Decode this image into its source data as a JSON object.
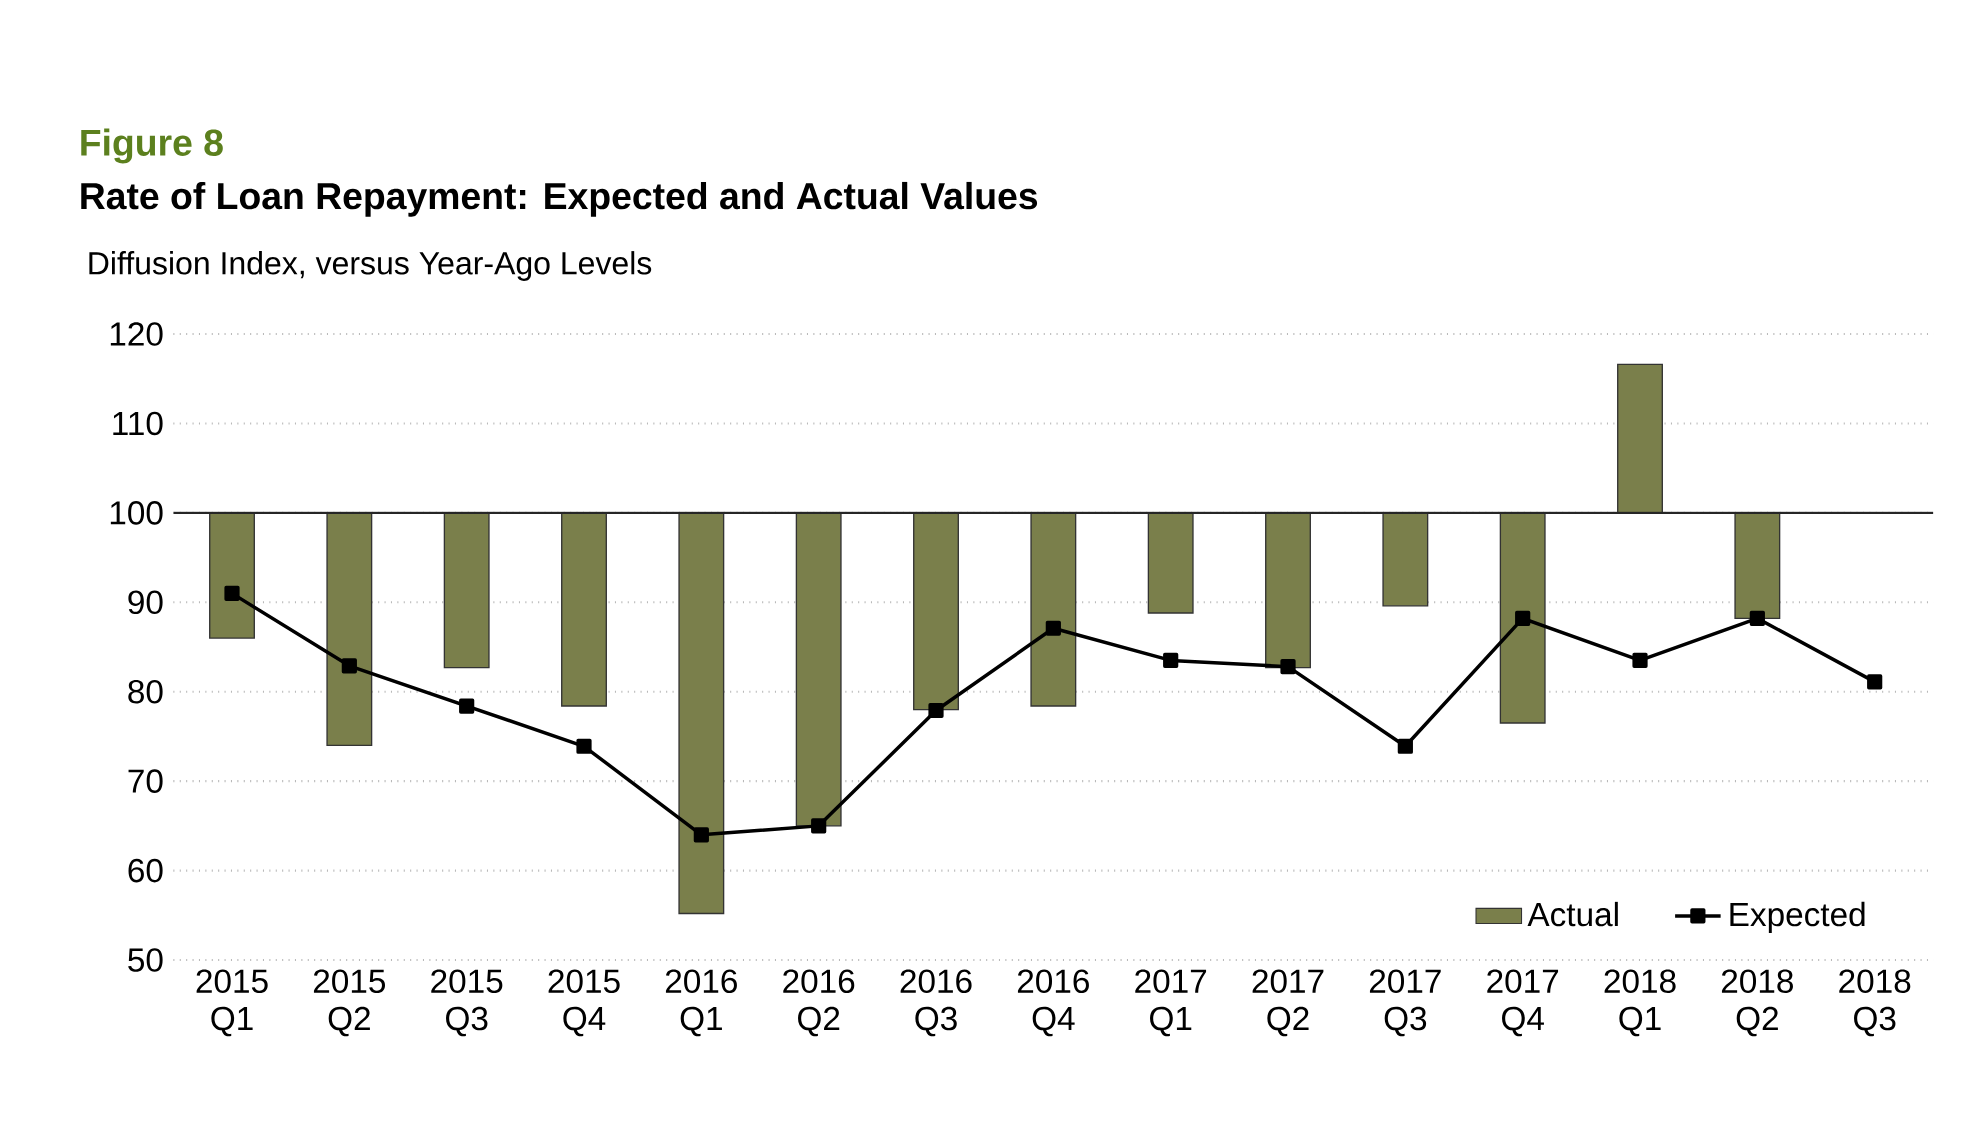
{
  "chart_data": {
    "type": "bar",
    "title": "Figure 8",
    "subtitle": "Rate of Loan Repayment: Expected and Actual Values",
    "ylabel": "Diffusion Index, versus Year-Ago Levels",
    "categories": [
      "2015 Q1",
      "2015 Q2",
      "2015 Q3",
      "2015 Q4",
      "2016 Q1",
      "2016 Q2",
      "2016 Q3",
      "2016 Q4",
      "2017 Q1",
      "2017 Q2",
      "2017 Q3",
      "2017 Q4",
      "2018 Q1",
      "2018 Q2",
      "2018 Q3"
    ],
    "series": [
      {
        "name": "Actual",
        "color": "#7a7f4b",
        "base": [
          100,
          100,
          100,
          100,
          100,
          100,
          100,
          100,
          100,
          100,
          100,
          100,
          100,
          100,
          null
        ],
        "values": [
          -14,
          -26,
          -17.3,
          -21.6,
          -44.8,
          -35,
          -22,
          -21.6,
          -11.2,
          -17.3,
          -10.4,
          -23.5,
          16.6,
          -11.8,
          null
        ]
      },
      {
        "name": "Expected",
        "type": "line",
        "color": "#000000",
        "marker": "square",
        "values": [
          91,
          82.9,
          78.4,
          73.9,
          64,
          65,
          77.9,
          87.1,
          83.5,
          82.8,
          73.9,
          88.2,
          83.5,
          88.2,
          81.1
        ]
      }
    ],
    "ylim": [
      50,
      120
    ],
    "yticks": [
      50,
      60,
      70,
      80,
      90,
      100,
      110,
      120
    ],
    "grid": "y",
    "legend": "bottom right",
    "ref_lines": [
      {
        "axis": "y",
        "value": 100,
        "color": "#262626"
      }
    ]
  }
}
